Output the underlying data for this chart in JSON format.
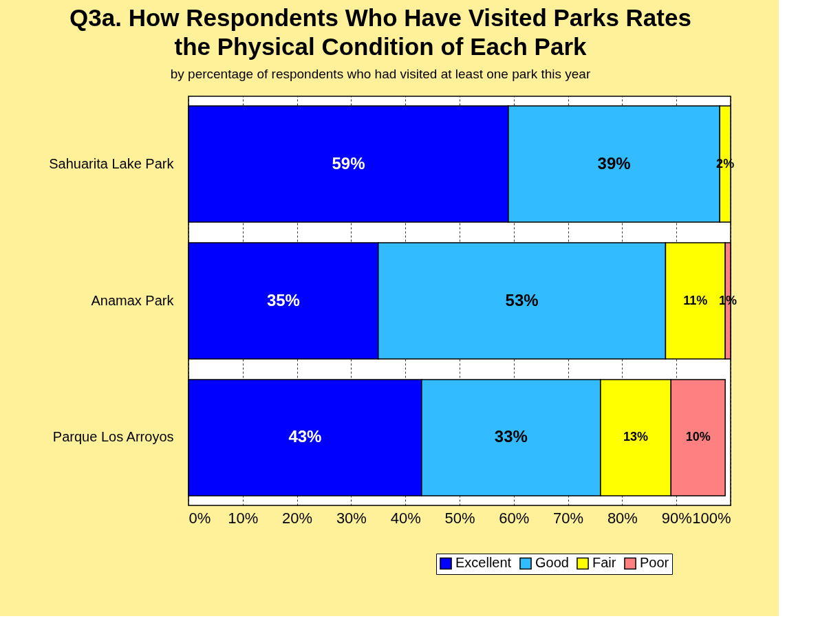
{
  "chart_data": {
    "type": "bar",
    "orientation": "horizontal",
    "stacked": true,
    "title": "Q3a. How Respondents Who Have Visited Parks Rates the Physical Condition of Each Park",
    "subtitle": "by percentage of respondents who had visited at least one park this year",
    "categories": [
      "Sahuarita Lake Park",
      "Anamax Park",
      "Parque Los Arroyos"
    ],
    "series": [
      {
        "name": "Excellent",
        "color": "#0000ff",
        "values": [
          59,
          35,
          43
        ],
        "value_labels": [
          "59%",
          "35%",
          "43%"
        ]
      },
      {
        "name": "Good",
        "color": "#33bbff",
        "values": [
          39,
          53,
          33
        ],
        "value_labels": [
          "39%",
          "53%",
          "33%"
        ]
      },
      {
        "name": "Fair",
        "color": "#ffff00",
        "values": [
          2,
          11,
          13
        ],
        "value_labels": [
          "2%",
          "11%",
          "13%"
        ]
      },
      {
        "name": "Poor",
        "color": "#ff8080",
        "values": [
          null,
          1,
          10
        ],
        "value_labels": [
          null,
          "1%",
          "10%"
        ]
      }
    ],
    "xlim": [
      0,
      100
    ],
    "xticks": [
      {
        "value": 0,
        "label": "0%"
      },
      {
        "value": 10,
        "label": "10%"
      },
      {
        "value": 20,
        "label": "20%"
      },
      {
        "value": 30,
        "label": "30%"
      },
      {
        "value": 40,
        "label": "40%"
      },
      {
        "value": 50,
        "label": "50%"
      },
      {
        "value": 60,
        "label": "60%"
      },
      {
        "value": 70,
        "label": "70%"
      },
      {
        "value": 80,
        "label": "80%"
      },
      {
        "value": 90,
        "label": "90%"
      },
      {
        "value": 100,
        "label": "100%"
      }
    ],
    "grid": "x",
    "legend": "bottom right"
  }
}
